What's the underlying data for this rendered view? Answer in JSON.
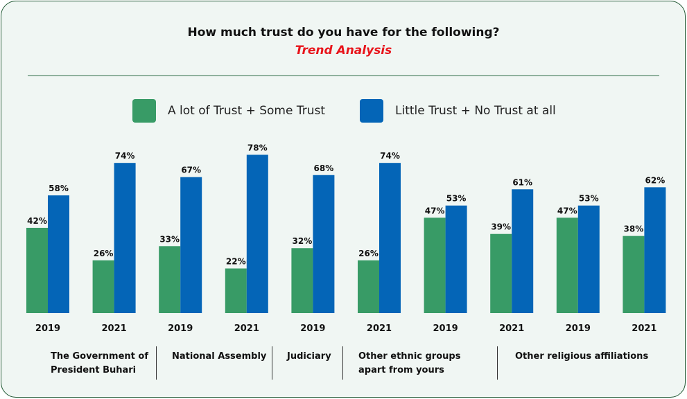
{
  "colors": {
    "series_1": "#389b66",
    "series_2": "#0465b7",
    "title": "#111111",
    "subtitle": "#e8141b",
    "border": "#1e5631"
  },
  "chart_data": {
    "type": "bar",
    "title": "How much trust do you have for the following?",
    "subtitle": "Trend Analysis",
    "legend_position": "top",
    "ylim": [
      0,
      100
    ],
    "grid": false,
    "categories": [
      "2019",
      "2021",
      "2019",
      "2021",
      "2019",
      "2021",
      "2019",
      "2021",
      "2019",
      "2021"
    ],
    "series": [
      {
        "name": "A lot of Trust + Some Trust",
        "values": [
          42,
          26,
          33,
          22,
          32,
          26,
          47,
          39,
          47,
          38
        ]
      },
      {
        "name": "Little Trust + No Trust at all",
        "values": [
          58,
          74,
          67,
          78,
          68,
          74,
          53,
          61,
          53,
          62
        ]
      }
    ],
    "value_suffix": "%",
    "groups": [
      "The Government of President Buhari",
      "National Assembly",
      "Judiciary",
      "Other ethnic groups apart from yours",
      "Other religious affiliations"
    ]
  }
}
